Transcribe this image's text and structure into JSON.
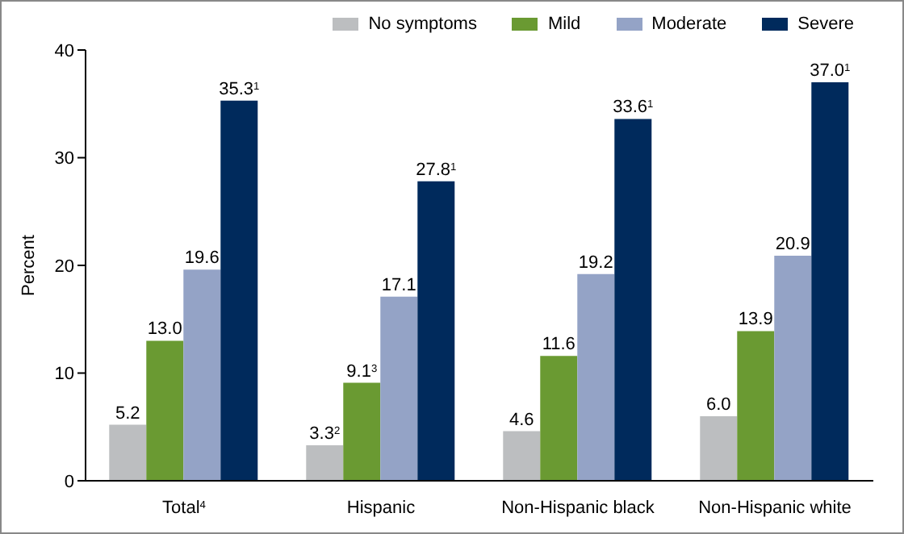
{
  "chart_data": {
    "type": "bar",
    "ylabel": "Percent",
    "categories": [
      "Total$^{4}$",
      "Hispanic",
      "Non-Hispanic black",
      "Non-Hispanic white"
    ],
    "series": [
      {
        "name": "No symptoms",
        "color": "#bcbec0",
        "values": [
          5.2,
          3.3,
          4.6,
          6.0
        ],
        "value_labels": [
          "5.2",
          "3.3$^{2}$",
          "4.6",
          "6.0"
        ]
      },
      {
        "name": "Mild",
        "color": "#6a9a32",
        "values": [
          13.0,
          9.1,
          11.6,
          13.9
        ],
        "value_labels": [
          "13.0",
          "9.1$^{3}$",
          "11.6",
          "13.9"
        ]
      },
      {
        "name": "Moderate",
        "color": "#94a3c6",
        "values": [
          19.6,
          17.1,
          19.2,
          20.9
        ],
        "value_labels": [
          "19.6",
          "17.1",
          "19.2",
          "20.9"
        ]
      },
      {
        "name": "Severe",
        "color": "#002a5c",
        "values": [
          35.3,
          27.8,
          33.6,
          37.0
        ],
        "value_labels": [
          "35.3$^{1}$",
          "27.8$^{1}$",
          "33.6$^{1}$",
          "37.0$^{1}$"
        ]
      }
    ],
    "ylim": [
      0,
      40
    ],
    "yticks": [
      0,
      10,
      20,
      30,
      40
    ],
    "grid": false,
    "legend": "top right"
  }
}
